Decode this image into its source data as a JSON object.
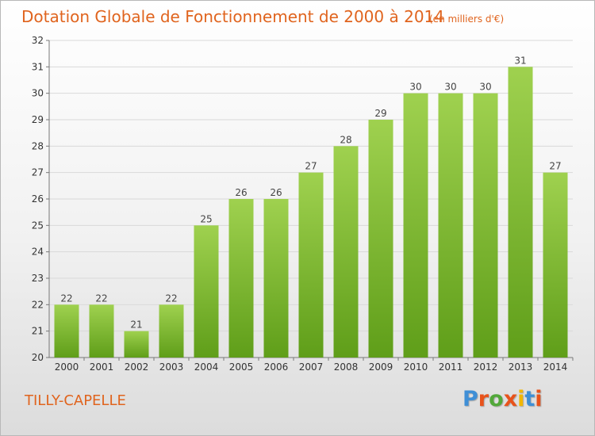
{
  "colors": {
    "accent": "#e0641e",
    "bar_top": "#9fd14f",
    "bar_bottom": "#5f9e19",
    "grid": "#d9d9d9",
    "logo": [
      "#3f8fd6",
      "#e8531b",
      "#52a83a",
      "#e8531b",
      "#f2b705",
      "#3f8fd6",
      "#e8531b"
    ]
  },
  "chart_data": {
    "type": "bar",
    "title": "Dotation Globale de Fonctionnement de 2000 à 2014",
    "unit_note": "(en milliers d'€)",
    "categories": [
      "2000",
      "2001",
      "2002",
      "2003",
      "2004",
      "2005",
      "2006",
      "2007",
      "2008",
      "2009",
      "2010",
      "2011",
      "2012",
      "2013",
      "2014"
    ],
    "values": [
      22,
      22,
      21,
      22,
      25,
      26,
      26,
      27,
      28,
      29,
      30,
      30,
      30,
      31,
      27
    ],
    "ylim": [
      20,
      32
    ],
    "yticks": [
      20,
      21,
      22,
      23,
      24,
      25,
      26,
      27,
      28,
      29,
      30,
      31,
      32
    ],
    "grid": true,
    "data_labels": true
  },
  "footer": {
    "city": "TILLY-CAPELLE",
    "logo_text": "Proxiti"
  }
}
